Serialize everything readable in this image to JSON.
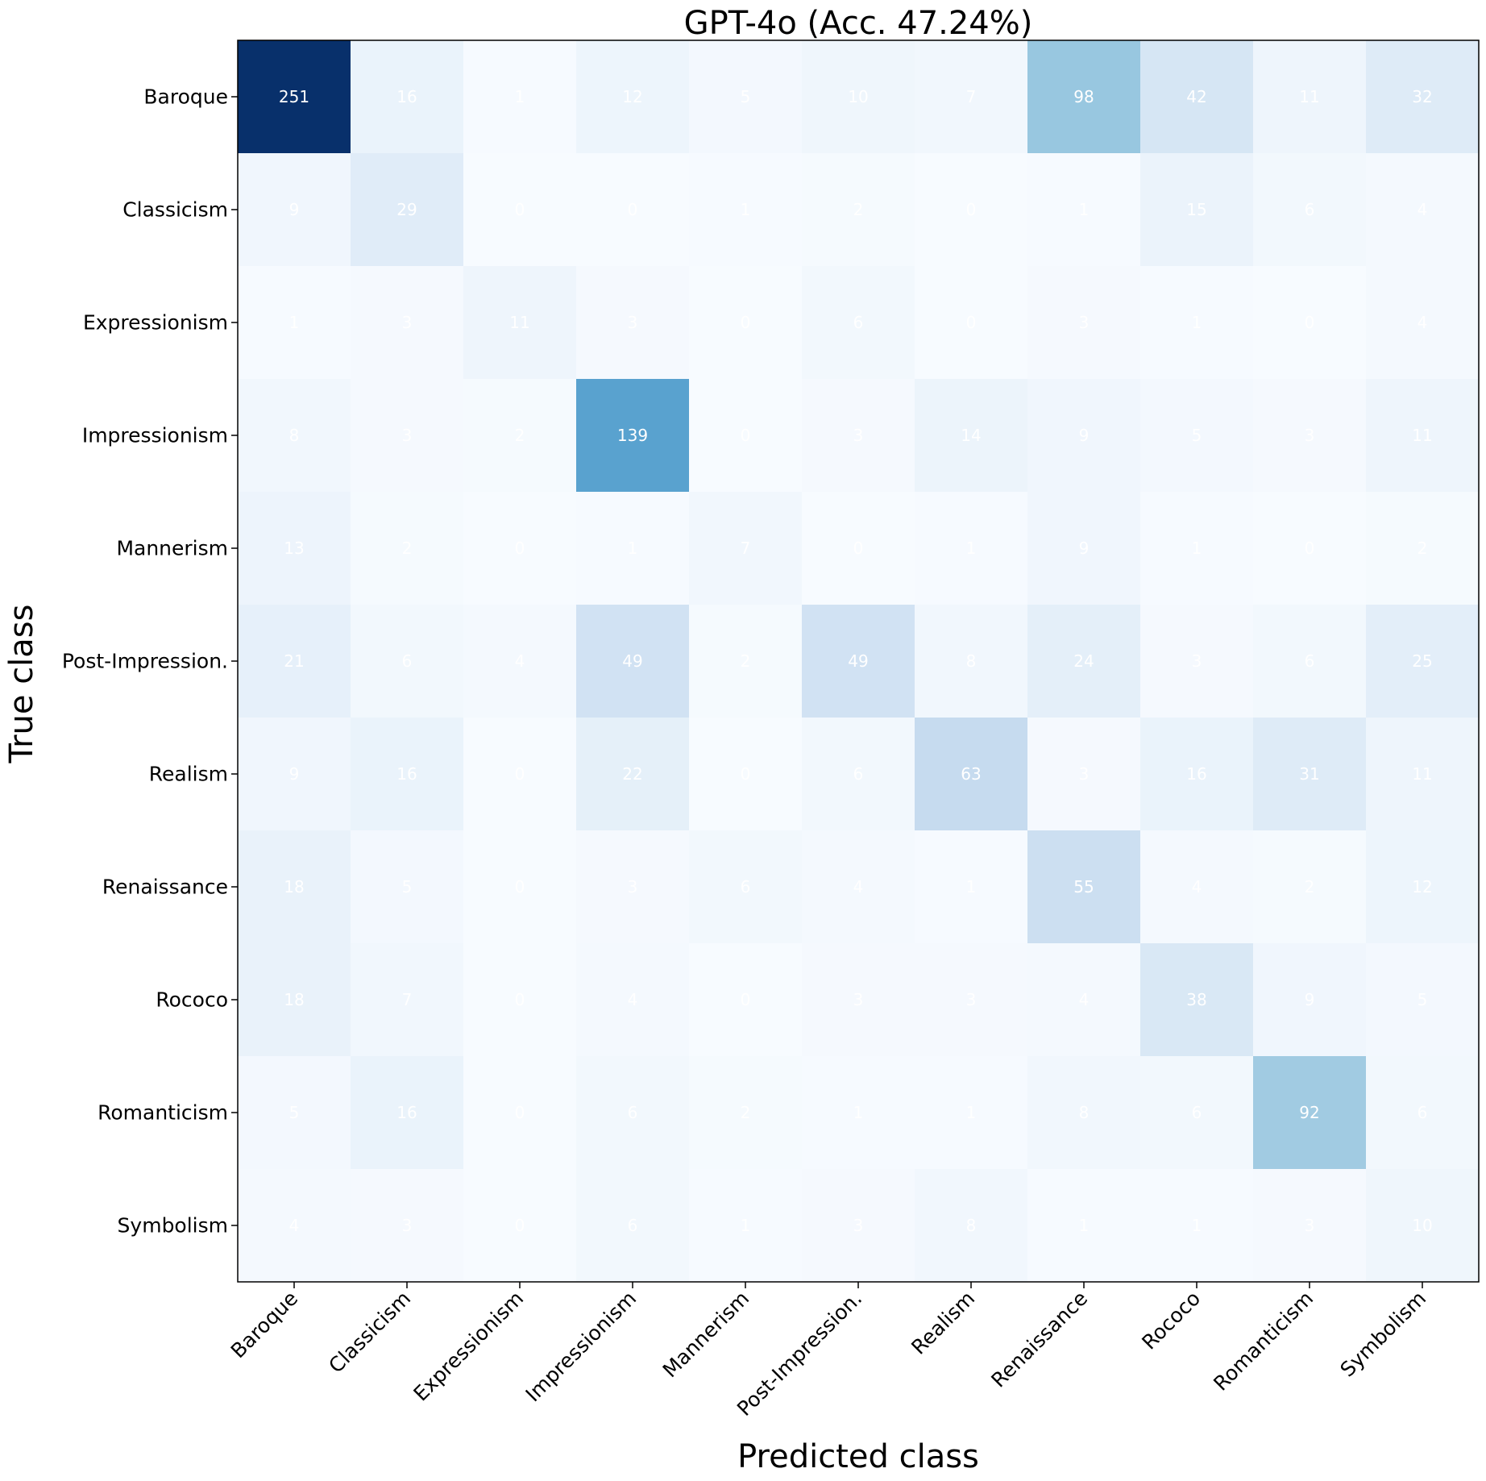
{
  "chart_data": {
    "type": "heatmap",
    "title": "GPT-4o (Acc. 47.24%)",
    "xlabel": "Predicted class",
    "ylabel": "True class",
    "x_categories": [
      "Baroque",
      "Classicism",
      "Expressionism",
      "Impressionism",
      "Mannerism",
      "Post-Impression.",
      "Realism",
      "Renaissance",
      "Rococo",
      "Romanticism",
      "Symbolism"
    ],
    "y_categories": [
      "Baroque",
      "Classicism",
      "Expressionism",
      "Impressionism",
      "Mannerism",
      "Post-Impression.",
      "Realism",
      "Renaissance",
      "Rococo",
      "Romanticism",
      "Symbolism"
    ],
    "values": [
      [
        251,
        16,
        1,
        12,
        5,
        10,
        7,
        98,
        42,
        11,
        32
      ],
      [
        9,
        29,
        0,
        0,
        1,
        2,
        0,
        1,
        15,
        6,
        4
      ],
      [
        1,
        3,
        11,
        3,
        0,
        6,
        0,
        3,
        1,
        0,
        4
      ],
      [
        8,
        3,
        2,
        139,
        0,
        3,
        14,
        9,
        5,
        3,
        11
      ],
      [
        13,
        2,
        0,
        1,
        7,
        0,
        1,
        9,
        1,
        0,
        2
      ],
      [
        21,
        6,
        4,
        49,
        2,
        49,
        8,
        24,
        3,
        6,
        25
      ],
      [
        9,
        16,
        0,
        22,
        0,
        6,
        63,
        3,
        16,
        31,
        11
      ],
      [
        18,
        5,
        0,
        3,
        6,
        4,
        1,
        55,
        4,
        2,
        12
      ],
      [
        18,
        7,
        0,
        4,
        0,
        3,
        3,
        4,
        38,
        9,
        5
      ],
      [
        5,
        16,
        0,
        6,
        2,
        1,
        1,
        8,
        6,
        92,
        6
      ],
      [
        4,
        3,
        0,
        6,
        1,
        3,
        8,
        1,
        1,
        3,
        10
      ]
    ],
    "colormap": "Blues",
    "vmin": 0,
    "vmax": 251,
    "grid": false,
    "cell_text_color": "#ffffff"
  }
}
